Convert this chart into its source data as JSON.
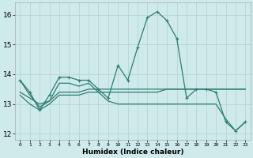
{
  "xlabel": "Humidex (Indice chaleur)",
  "x": [
    0,
    1,
    2,
    3,
    4,
    5,
    6,
    7,
    8,
    9,
    10,
    11,
    12,
    13,
    14,
    15,
    16,
    17,
    18,
    19,
    20,
    21,
    22,
    23
  ],
  "line1": [
    13.8,
    13.4,
    12.8,
    13.3,
    13.9,
    13.9,
    13.8,
    13.8,
    13.5,
    13.2,
    14.3,
    13.8,
    14.9,
    15.9,
    16.1,
    15.8,
    15.2,
    13.2,
    13.5,
    13.5,
    13.4,
    12.4,
    12.1,
    12.4
  ],
  "line2": [
    13.4,
    13.2,
    13.0,
    13.1,
    13.4,
    13.4,
    13.4,
    13.5,
    13.5,
    13.5,
    13.5,
    13.5,
    13.5,
    13.5,
    13.5,
    13.5,
    13.5,
    13.5,
    13.5,
    13.5,
    13.5,
    13.5,
    13.5,
    13.5
  ],
  "line3": [
    13.3,
    13.0,
    12.8,
    13.0,
    13.3,
    13.3,
    13.3,
    13.4,
    13.4,
    13.4,
    13.4,
    13.4,
    13.4,
    13.4,
    13.4,
    13.5,
    13.5,
    13.5,
    13.5,
    13.5,
    13.5,
    13.5,
    13.5,
    13.5
  ],
  "line4": [
    13.8,
    13.3,
    12.9,
    13.1,
    13.7,
    13.7,
    13.6,
    13.7,
    13.4,
    13.1,
    13.0,
    13.0,
    13.0,
    13.0,
    13.0,
    13.0,
    13.0,
    13.0,
    13.0,
    13.0,
    13.0,
    12.5,
    12.1,
    12.4
  ],
  "line_color": "#2e7d6e",
  "bg_color": "#ceeaea",
  "grid_color": "#b8d4d4",
  "ylim": [
    11.8,
    16.4
  ],
  "yticks": [
    12,
    13,
    14,
    15,
    16
  ],
  "xlim": [
    -0.5,
    23.5
  ]
}
